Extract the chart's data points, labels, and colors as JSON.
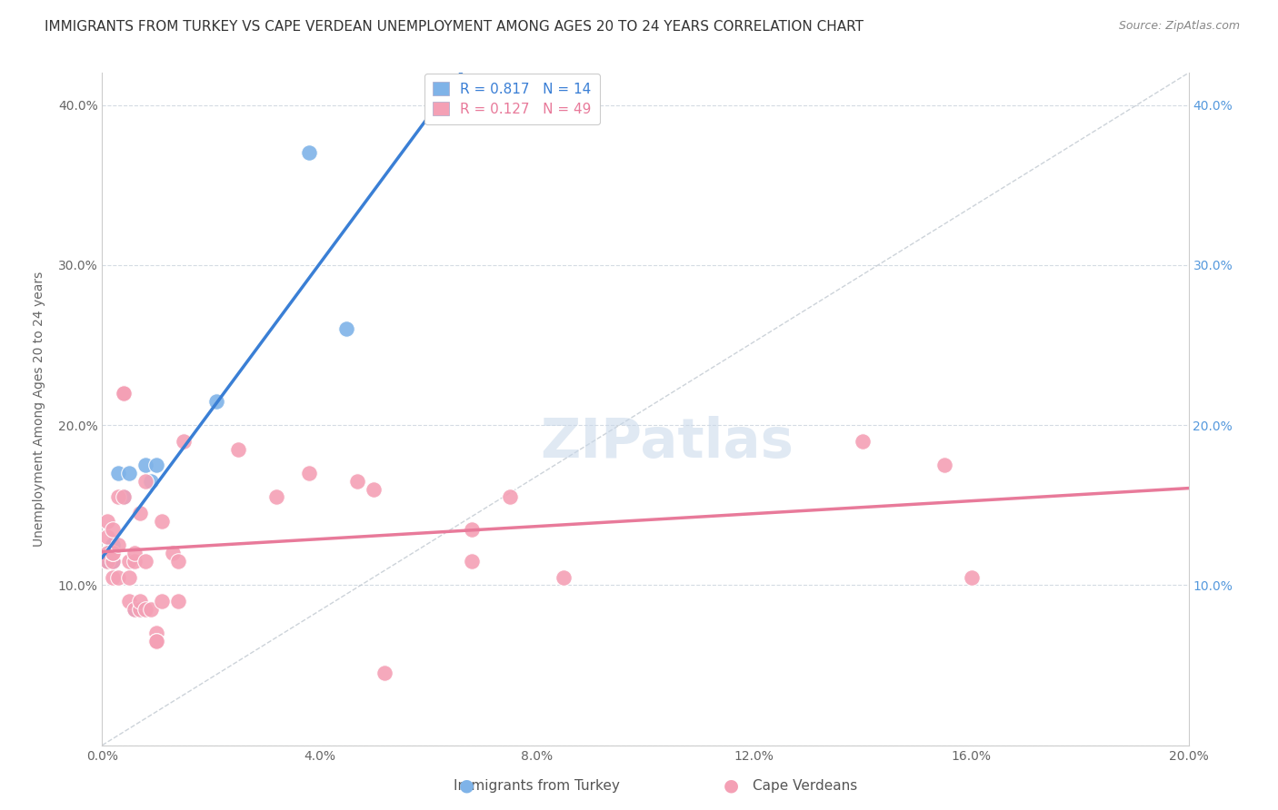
{
  "title": "IMMIGRANTS FROM TURKEY VS CAPE VERDEAN UNEMPLOYMENT AMONG AGES 20 TO 24 YEARS CORRELATION CHART",
  "source": "Source: ZipAtlas.com",
  "ylabel": "Unemployment Among Ages 20 to 24 years",
  "xlim": [
    0.0,
    0.2
  ],
  "ylim": [
    0.0,
    0.42
  ],
  "xticks": [
    0.0,
    0.04,
    0.08,
    0.12,
    0.16,
    0.2
  ],
  "yticks_left": [
    0.0,
    0.1,
    0.2,
    0.3,
    0.4
  ],
  "yticks_right": [
    0.1,
    0.2,
    0.3,
    0.4
  ],
  "watermark": "ZIPatlas",
  "turkey_scatter": [
    [
      0.001,
      0.115
    ],
    [
      0.002,
      0.115
    ],
    [
      0.002,
      0.125
    ],
    [
      0.003,
      0.17
    ],
    [
      0.004,
      0.155
    ],
    [
      0.005,
      0.17
    ],
    [
      0.006,
      0.085
    ],
    [
      0.007,
      0.085
    ],
    [
      0.008,
      0.175
    ],
    [
      0.009,
      0.165
    ],
    [
      0.01,
      0.175
    ],
    [
      0.021,
      0.215
    ],
    [
      0.038,
      0.37
    ],
    [
      0.045,
      0.26
    ]
  ],
  "capeverde_scatter": [
    [
      0.001,
      0.12
    ],
    [
      0.001,
      0.13
    ],
    [
      0.001,
      0.14
    ],
    [
      0.001,
      0.115
    ],
    [
      0.002,
      0.115
    ],
    [
      0.002,
      0.12
    ],
    [
      0.002,
      0.12
    ],
    [
      0.002,
      0.105
    ],
    [
      0.002,
      0.135
    ],
    [
      0.003,
      0.105
    ],
    [
      0.003,
      0.125
    ],
    [
      0.003,
      0.155
    ],
    [
      0.004,
      0.22
    ],
    [
      0.004,
      0.22
    ],
    [
      0.004,
      0.155
    ],
    [
      0.005,
      0.115
    ],
    [
      0.005,
      0.105
    ],
    [
      0.005,
      0.09
    ],
    [
      0.006,
      0.115
    ],
    [
      0.006,
      0.12
    ],
    [
      0.006,
      0.085
    ],
    [
      0.007,
      0.085
    ],
    [
      0.007,
      0.145
    ],
    [
      0.007,
      0.09
    ],
    [
      0.008,
      0.165
    ],
    [
      0.008,
      0.115
    ],
    [
      0.008,
      0.085
    ],
    [
      0.009,
      0.085
    ],
    [
      0.01,
      0.07
    ],
    [
      0.01,
      0.065
    ],
    [
      0.01,
      0.065
    ],
    [
      0.011,
      0.14
    ],
    [
      0.011,
      0.09
    ],
    [
      0.013,
      0.12
    ],
    [
      0.014,
      0.115
    ],
    [
      0.014,
      0.09
    ],
    [
      0.015,
      0.19
    ],
    [
      0.025,
      0.185
    ],
    [
      0.032,
      0.155
    ],
    [
      0.038,
      0.17
    ],
    [
      0.047,
      0.165
    ],
    [
      0.05,
      0.16
    ],
    [
      0.052,
      0.045
    ],
    [
      0.068,
      0.135
    ],
    [
      0.068,
      0.115
    ],
    [
      0.075,
      0.155
    ],
    [
      0.085,
      0.105
    ],
    [
      0.14,
      0.19
    ],
    [
      0.155,
      0.175
    ],
    [
      0.16,
      0.105
    ]
  ],
  "turkey_line_color": "#3a7fd5",
  "capeverde_line_color": "#e87a9a",
  "diagonal_line_color": "#c0c8d0",
  "scatter_blue": "#7fb3e8",
  "scatter_pink": "#f4a0b5",
  "background_color": "#ffffff",
  "grid_color": "#d0d8e0",
  "title_fontsize": 11,
  "axis_label_fontsize": 10,
  "tick_fontsize": 10,
  "legend_fontsize": 11
}
